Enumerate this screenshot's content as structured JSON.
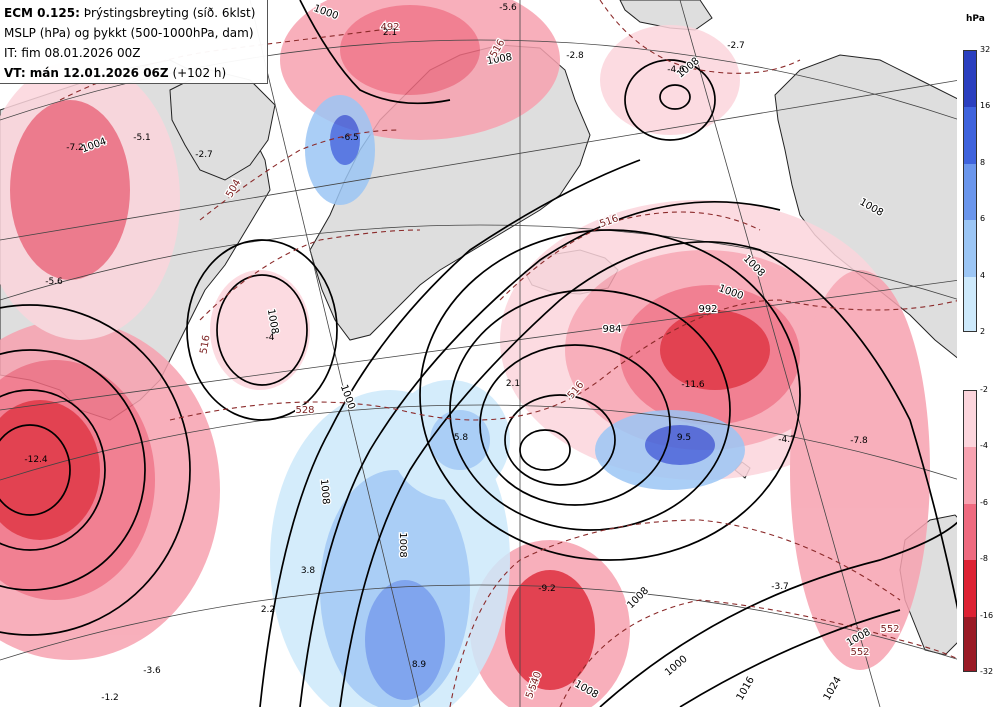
{
  "title": {
    "line1_bold": "ECM 0.125:",
    "line1_rest": "Þrýstingsbreyting (síð. 6klst)",
    "line2": "MSLP (hPa) og þykkt (500-1000hPa, dam)",
    "line3": "IT: fim 08.01.2026 00Z",
    "line4_bold": "VT: mán 12.01.2026 06Z",
    "line4_rest": "(+102 h)"
  },
  "legend": {
    "unit": "hPa",
    "rise_scale": {
      "ticks": [
        "32",
        "16",
        "8",
        "6",
        "4",
        "2"
      ],
      "colors": [
        "#2a3fbf",
        "#3f63dd",
        "#6b96ec",
        "#9cc6f5",
        "#cde9fb"
      ]
    },
    "fall_scale": {
      "ticks": [
        "-2",
        "-4",
        "-6",
        "-8",
        "-16",
        "-32"
      ],
      "colors": [
        "#fcd5dc",
        "#f7a2b0",
        "#ef6a7f",
        "#dd2233",
        "#9a1a26"
      ]
    }
  },
  "pressure_labels": [
    "1000",
    "1004",
    "1008",
    "1008",
    "1008",
    "1000",
    "1008",
    "1008",
    "984",
    "992",
    "1000",
    "1008",
    "1008",
    "1000",
    "1008",
    "1008",
    "1008",
    "1016",
    "1024"
  ],
  "thickness_labels": [
    "516",
    "504",
    "540",
    "528",
    "516",
    "516",
    "516",
    "540",
    "552",
    "552",
    "492"
  ],
  "change_labels": [
    "-5.6",
    "2.1",
    "-6.5",
    "-2.8",
    "-2.7",
    "-4.6",
    "-7.2",
    "-5.1",
    "-2.7",
    "-5.6",
    "-4",
    "2.1",
    "5.8",
    "-11.6",
    "9.5",
    "-4.7",
    "-7.8",
    "3.8",
    "2.2",
    "-9.2",
    "8.9",
    "-3.7",
    "-3.6",
    "-12.4",
    "-1.2"
  ]
}
